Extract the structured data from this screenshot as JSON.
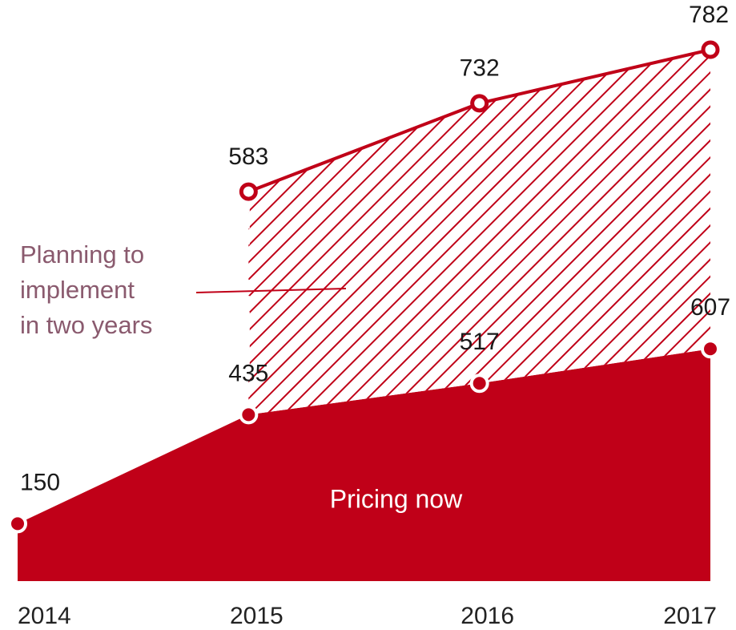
{
  "chart_data": {
    "type": "area",
    "categories": [
      "2014",
      "2015",
      "2016",
      "2017"
    ],
    "series": [
      {
        "name": "Pricing now",
        "color": "#c00018",
        "values": [
          150,
          435,
          517,
          607
        ]
      },
      {
        "name": "Planning to\nimplement\nin two years",
        "color": "#c00018",
        "values": [
          null,
          583,
          732,
          782
        ]
      }
    ]
  }
}
